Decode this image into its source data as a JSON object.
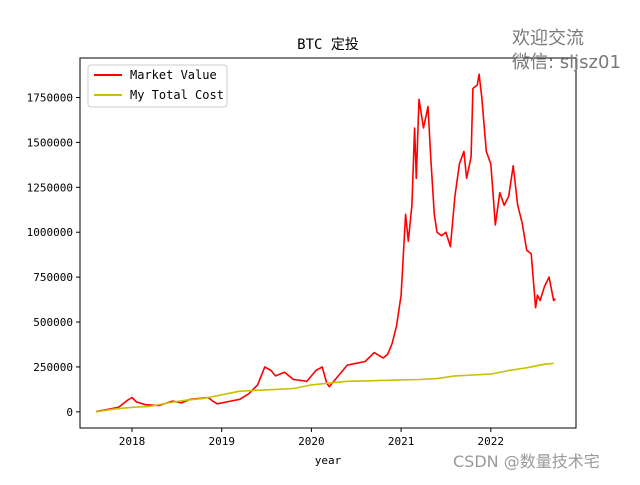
{
  "chart_data": {
    "type": "line",
    "title": "BTC 定投",
    "xlabel": "year",
    "ylabel": "",
    "xlim": [
      2017.42,
      2022.95
    ],
    "ylim": [
      -90000,
      1970000
    ],
    "x_ticks": [
      2018,
      2019,
      2020,
      2021,
      2022
    ],
    "x_tick_labels": [
      "2018",
      "2019",
      "2020",
      "2021",
      "2022"
    ],
    "y_ticks": [
      0,
      250000,
      500000,
      750000,
      1000000,
      1250000,
      1500000,
      1750000
    ],
    "y_tick_labels": [
      "0",
      "250000",
      "500000",
      "750000",
      "1000000",
      "1250000",
      "1500000",
      "1750000"
    ],
    "grid": false,
    "legend_position": "top-left",
    "series": [
      {
        "name": "Market Value",
        "color": "#ff0000",
        "points": [
          [
            2017.6,
            2000
          ],
          [
            2017.75,
            15000
          ],
          [
            2017.85,
            25000
          ],
          [
            2017.95,
            65000
          ],
          [
            2018.0,
            80000
          ],
          [
            2018.05,
            55000
          ],
          [
            2018.15,
            40000
          ],
          [
            2018.3,
            35000
          ],
          [
            2018.45,
            60000
          ],
          [
            2018.55,
            50000
          ],
          [
            2018.65,
            70000
          ],
          [
            2018.75,
            75000
          ],
          [
            2018.85,
            80000
          ],
          [
            2018.9,
            60000
          ],
          [
            2018.95,
            45000
          ],
          [
            2019.1,
            60000
          ],
          [
            2019.2,
            70000
          ],
          [
            2019.3,
            100000
          ],
          [
            2019.4,
            150000
          ],
          [
            2019.48,
            250000
          ],
          [
            2019.55,
            230000
          ],
          [
            2019.6,
            200000
          ],
          [
            2019.7,
            220000
          ],
          [
            2019.8,
            180000
          ],
          [
            2019.95,
            170000
          ],
          [
            2020.05,
            230000
          ],
          [
            2020.12,
            250000
          ],
          [
            2020.17,
            160000
          ],
          [
            2020.2,
            140000
          ],
          [
            2020.3,
            200000
          ],
          [
            2020.4,
            260000
          ],
          [
            2020.5,
            270000
          ],
          [
            2020.6,
            280000
          ],
          [
            2020.7,
            330000
          ],
          [
            2020.8,
            300000
          ],
          [
            2020.85,
            320000
          ],
          [
            2020.9,
            380000
          ],
          [
            2020.95,
            480000
          ],
          [
            2021.0,
            650000
          ],
          [
            2021.05,
            1100000
          ],
          [
            2021.08,
            950000
          ],
          [
            2021.12,
            1150000
          ],
          [
            2021.15,
            1580000
          ],
          [
            2021.17,
            1300000
          ],
          [
            2021.2,
            1740000
          ],
          [
            2021.25,
            1580000
          ],
          [
            2021.3,
            1700000
          ],
          [
            2021.33,
            1420000
          ],
          [
            2021.37,
            1100000
          ],
          [
            2021.4,
            1000000
          ],
          [
            2021.45,
            980000
          ],
          [
            2021.5,
            1000000
          ],
          [
            2021.55,
            920000
          ],
          [
            2021.6,
            1200000
          ],
          [
            2021.65,
            1380000
          ],
          [
            2021.7,
            1450000
          ],
          [
            2021.73,
            1300000
          ],
          [
            2021.78,
            1420000
          ],
          [
            2021.8,
            1800000
          ],
          [
            2021.85,
            1820000
          ],
          [
            2021.87,
            1880000
          ],
          [
            2021.9,
            1750000
          ],
          [
            2021.95,
            1450000
          ],
          [
            2022.0,
            1380000
          ],
          [
            2022.02,
            1250000
          ],
          [
            2022.05,
            1040000
          ],
          [
            2022.1,
            1220000
          ],
          [
            2022.15,
            1150000
          ],
          [
            2022.2,
            1200000
          ],
          [
            2022.25,
            1370000
          ],
          [
            2022.3,
            1150000
          ],
          [
            2022.35,
            1050000
          ],
          [
            2022.4,
            900000
          ],
          [
            2022.45,
            880000
          ],
          [
            2022.5,
            580000
          ],
          [
            2022.52,
            650000
          ],
          [
            2022.55,
            620000
          ],
          [
            2022.6,
            700000
          ],
          [
            2022.65,
            750000
          ],
          [
            2022.7,
            620000
          ],
          [
            2022.72,
            630000
          ]
        ]
      },
      {
        "name": "My Total Cost",
        "color": "#c8c000",
        "points": [
          [
            2017.6,
            0
          ],
          [
            2017.8,
            15000
          ],
          [
            2018.0,
            25000
          ],
          [
            2018.2,
            30000
          ],
          [
            2018.4,
            50000
          ],
          [
            2018.6,
            65000
          ],
          [
            2018.8,
            75000
          ],
          [
            2019.0,
            95000
          ],
          [
            2019.2,
            115000
          ],
          [
            2019.4,
            120000
          ],
          [
            2019.6,
            125000
          ],
          [
            2019.8,
            130000
          ],
          [
            2020.0,
            150000
          ],
          [
            2020.2,
            160000
          ],
          [
            2020.4,
            170000
          ],
          [
            2020.6,
            172000
          ],
          [
            2020.8,
            175000
          ],
          [
            2021.0,
            178000
          ],
          [
            2021.2,
            180000
          ],
          [
            2021.4,
            185000
          ],
          [
            2021.6,
            200000
          ],
          [
            2021.8,
            205000
          ],
          [
            2022.0,
            210000
          ],
          [
            2022.2,
            230000
          ],
          [
            2022.4,
            245000
          ],
          [
            2022.6,
            265000
          ],
          [
            2022.7,
            270000
          ]
        ]
      }
    ]
  },
  "watermarks": {
    "top_line1": "欢迎交流",
    "top_line2": "微信: sljsz01",
    "bottom": "CSDN @数量技术宅"
  }
}
